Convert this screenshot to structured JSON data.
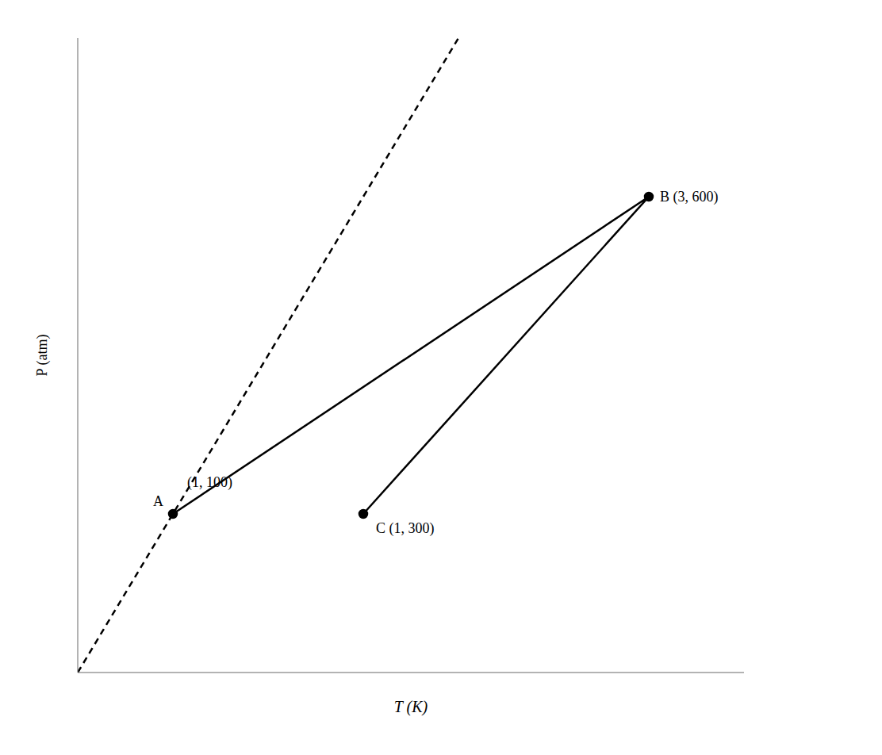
{
  "chart_data": {
    "type": "line",
    "xlabel": "T (K)",
    "ylabel": "P (atm)",
    "xlim": [
      0,
      700
    ],
    "ylim": [
      0,
      4.0
    ],
    "tick_labels": false,
    "grid": false,
    "series": [
      {
        "x": [
          100,
          600,
          300
        ],
        "values": [
          1,
          3,
          1
        ],
        "color": "#000000",
        "marker": "circle",
        "line_style": "solid"
      },
      {
        "x": [
          0,
          400
        ],
        "values": [
          0,
          4
        ],
        "color": "#000000",
        "marker": "none",
        "line_style": "dashed"
      }
    ],
    "annotations": [
      {
        "text": "A",
        "x": 100,
        "y": 1
      },
      {
        "text": "(1, 100)",
        "x": 100,
        "y": 1
      },
      {
        "text": "B (3, 600)",
        "x": 600,
        "y": 3
      },
      {
        "text": "C (1, 300)",
        "x": 300,
        "y": 1
      }
    ]
  }
}
